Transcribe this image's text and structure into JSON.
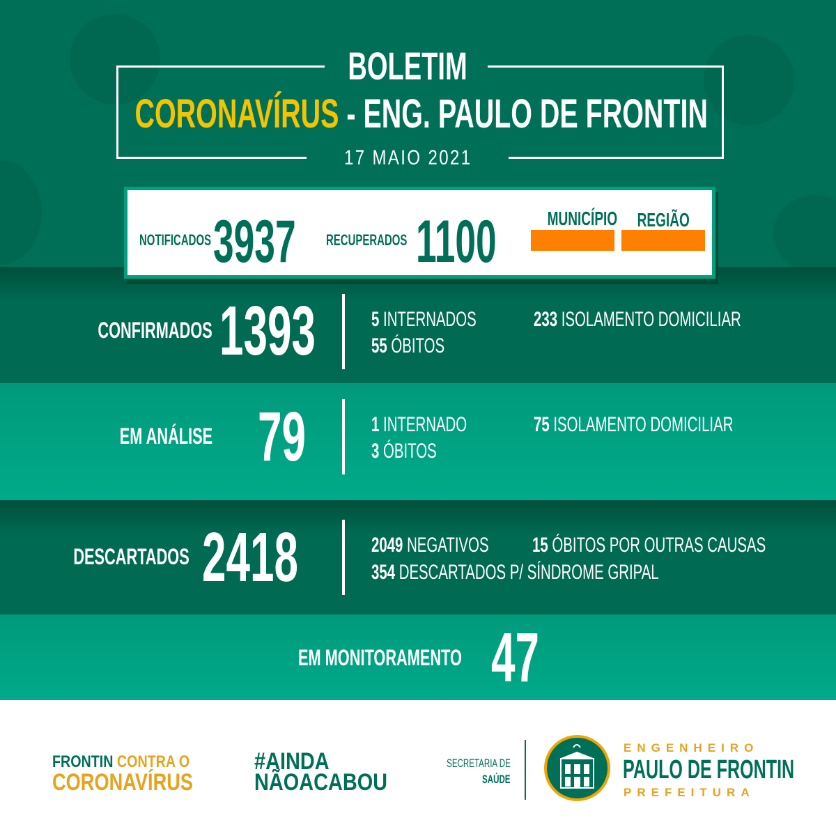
{
  "header": {
    "title": "BOLETIM",
    "subtitle_highlight": "CORONAVÍRUS",
    "subtitle_rest": "- ENG. PAULO DE FRONTIN",
    "date": "17 MAIO 2021"
  },
  "summary": {
    "notificados_label": "NOTIFICADOS",
    "notificados": "3937",
    "recuperados_label": "RECUPERADOS",
    "recuperados": "1100",
    "municipio_label": "MUNICÍPIO",
    "regiao_label": "REGIÃO",
    "flag_color": "#ff7f00"
  },
  "confirmados": {
    "label": "CONFIRMADOS",
    "value": "1393",
    "internados_n": "5",
    "internados": "INTERNADOS",
    "obitos_n": "55",
    "obitos": "ÓBITOS",
    "isolamento_n": "233",
    "isolamento": "ISOLAMENTO DOMICILIAR"
  },
  "analise": {
    "label": "EM ANÁLISE",
    "value": "79",
    "internados_n": "1",
    "internados": "INTERNADO",
    "obitos_n": "3",
    "obitos": "ÓBITOS",
    "isolamento_n": "75",
    "isolamento": "ISOLAMENTO DOMICILIAR"
  },
  "descartados": {
    "label": "DESCARTADOS",
    "value": "2418",
    "negativos_n": "2049",
    "negativos": "NEGATIVOS",
    "outras_n": "15",
    "outras": "ÓBITOS POR OUTRAS CAUSAS",
    "gripal_n": "354",
    "gripal": "DESCARTADOS P/ SÍNDROME GRIPAL"
  },
  "monitoramento": {
    "label": "EM MONITORAMENTO",
    "value": "47"
  },
  "footer": {
    "campaign_line1a": "FRONTIN",
    "campaign_line1b": "CONTRA O",
    "campaign_line2": "CORONAVÍRUS",
    "hashtag_line1": "#AINDA",
    "hashtag_line2": "NÃOACABOU",
    "secretaria_line1": "SECRETARIA DE",
    "secretaria_line2": "SAÚDE",
    "city_top": "ENGENHEIRO",
    "city_name": "PAULO DE FRONTIN",
    "city_bottom": "PREFEITURA"
  },
  "colors": {
    "green_dark": "#006f57",
    "green_bright": "#00a98a",
    "yellow": "#f5c400",
    "orange": "#ff7f00",
    "footer_orange": "#e8a21c"
  }
}
